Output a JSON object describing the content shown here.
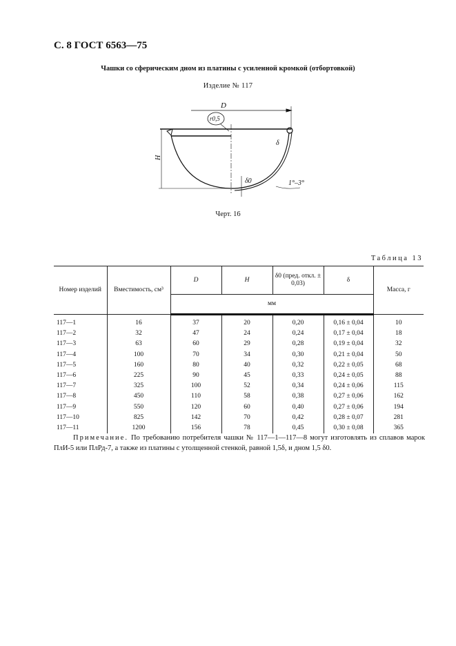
{
  "header": "С. 8 ГОСТ 6563—75",
  "subtitle": "Чашки со сферическим дном из платины с усиленной кромкой (отбортовкой)",
  "item_label": "Изделие № 117",
  "drawing": {
    "labels": {
      "D": "D",
      "H": "H",
      "r": "r0,5",
      "delta": "δ",
      "delta0": "δ0",
      "angle": "1°–3°"
    }
  },
  "figure_caption": "Черт. 16",
  "table_label": "Таблица 13",
  "table": {
    "headers": {
      "number": "Номер изделий",
      "capacity": "Вместимость, см³",
      "D": "D",
      "H": "H",
      "delta0": "δ0 (пред. откл. ± 0,03)",
      "delta": "δ",
      "mass": "Масса, г",
      "unit": "мм"
    },
    "rows": [
      [
        "117—1",
        "16",
        "37",
        "20",
        "0,20",
        "0,16 ± 0,04",
        "10"
      ],
      [
        "117—2",
        "32",
        "47",
        "24",
        "0,24",
        "0,17 ± 0,04",
        "18"
      ],
      [
        "117—3",
        "63",
        "60",
        "29",
        "0,28",
        "0,19 ± 0,04",
        "32"
      ],
      [
        "117—4",
        "100",
        "70",
        "34",
        "0,30",
        "0,21 ± 0,04",
        "50"
      ],
      [
        "117—5",
        "160",
        "80",
        "40",
        "0,32",
        "0,22 ± 0,05",
        "68"
      ],
      [
        "117—6",
        "225",
        "90",
        "45",
        "0,33",
        "0,24 ± 0,05",
        "88"
      ],
      [
        "117—7",
        "325",
        "100",
        "52",
        "0,34",
        "0,24 ± 0,06",
        "115"
      ],
      [
        "117—8",
        "450",
        "110",
        "58",
        "0,38",
        "0,27 ± 0,06",
        "162"
      ],
      [
        "117—9",
        "550",
        "120",
        "60",
        "0,40",
        "0,27 ± 0,06",
        "194"
      ],
      [
        "117—10",
        "825",
        "142",
        "70",
        "0,42",
        "0,28 ± 0,07",
        "281"
      ],
      [
        "117—11",
        "1200",
        "156",
        "78",
        "0,45",
        "0,30 ± 0,08",
        "365"
      ]
    ]
  },
  "note": {
    "label": "Примечание.",
    "text": " По требованию потребителя чашки № 117—1—117—8 могут изготовлять из сплавов марок ПлИ-5 или ПлРд-7, а также из платины с утолщенной стенкой, равной 1,5δ, и дном 1,5 δ0."
  }
}
